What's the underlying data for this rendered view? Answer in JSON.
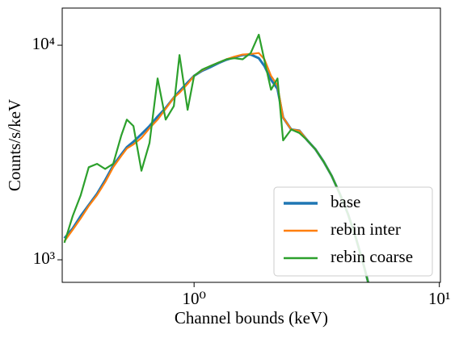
{
  "chart_data": {
    "type": "line",
    "xlabel": "Channel bounds (keV)",
    "ylabel": "Counts/s/keV",
    "xscale": "log",
    "yscale": "log",
    "xlim": [
      0.29,
      10.1
    ],
    "ylim": [
      785,
      14900
    ],
    "xticks": [
      {
        "value": 1,
        "label": "10⁰"
      },
      {
        "value": 10,
        "label": "10¹"
      }
    ],
    "yticks": [
      {
        "value": 1000,
        "label": "10³"
      },
      {
        "value": 10000,
        "label": "10⁴"
      }
    ],
    "legend": "lower right",
    "x": [
      0.296,
      0.32,
      0.345,
      0.372,
      0.402,
      0.434,
      0.468,
      0.505,
      0.532,
      0.566,
      0.61,
      0.658,
      0.71,
      0.766,
      0.827,
      0.872,
      0.941,
      1.0,
      1.079,
      1.164,
      1.256,
      1.355,
      1.462,
      1.578,
      1.702,
      1.836,
      1.936,
      2.059,
      2.188,
      2.307,
      2.489,
      2.686,
      2.897,
      3.126,
      3.373,
      3.64,
      3.927,
      4.237,
      4.571,
      4.932,
      5.124
    ],
    "series": [
      {
        "name": "base",
        "color": "#1f77b4",
        "values": [
          1260,
          1400,
          1600,
          1800,
          2030,
          2350,
          2750,
          3100,
          3350,
          3550,
          3850,
          4200,
          4650,
          5100,
          5700,
          6100,
          6700,
          7200,
          7600,
          7900,
          8250,
          8560,
          8800,
          9000,
          9050,
          8700,
          8000,
          6900,
          6260,
          4600,
          4050,
          4000,
          3600,
          3270,
          2870,
          2460,
          2030,
          1640,
          1260,
          930,
          785
        ]
      },
      {
        "name": "rebin inter",
        "color": "#ff7f0e",
        "values": [
          1220,
          1380,
          1560,
          1780,
          2000,
          2300,
          2700,
          3050,
          3300,
          3450,
          3700,
          4100,
          4500,
          5050,
          5700,
          6000,
          6600,
          7200,
          7650,
          8000,
          8300,
          8600,
          8850,
          9050,
          9100,
          9200,
          8600,
          7200,
          6500,
          4600,
          4050,
          4000,
          3600,
          3270,
          2870,
          2460,
          2030,
          1640,
          1260,
          930,
          785
        ]
      },
      {
        "name": "rebin coarse",
        "color": "#2ca02c",
        "values": [
          1200,
          1600,
          2000,
          2700,
          2800,
          2650,
          2800,
          3800,
          4500,
          4200,
          2600,
          3500,
          7000,
          4500,
          5200,
          9000,
          5000,
          7200,
          7700,
          8000,
          8300,
          8600,
          8700,
          8600,
          9200,
          11200,
          8500,
          6200,
          7000,
          3600,
          4050,
          3900,
          3600,
          3270,
          2870,
          2460,
          2030,
          1640,
          1260,
          930,
          785
        ]
      }
    ]
  }
}
